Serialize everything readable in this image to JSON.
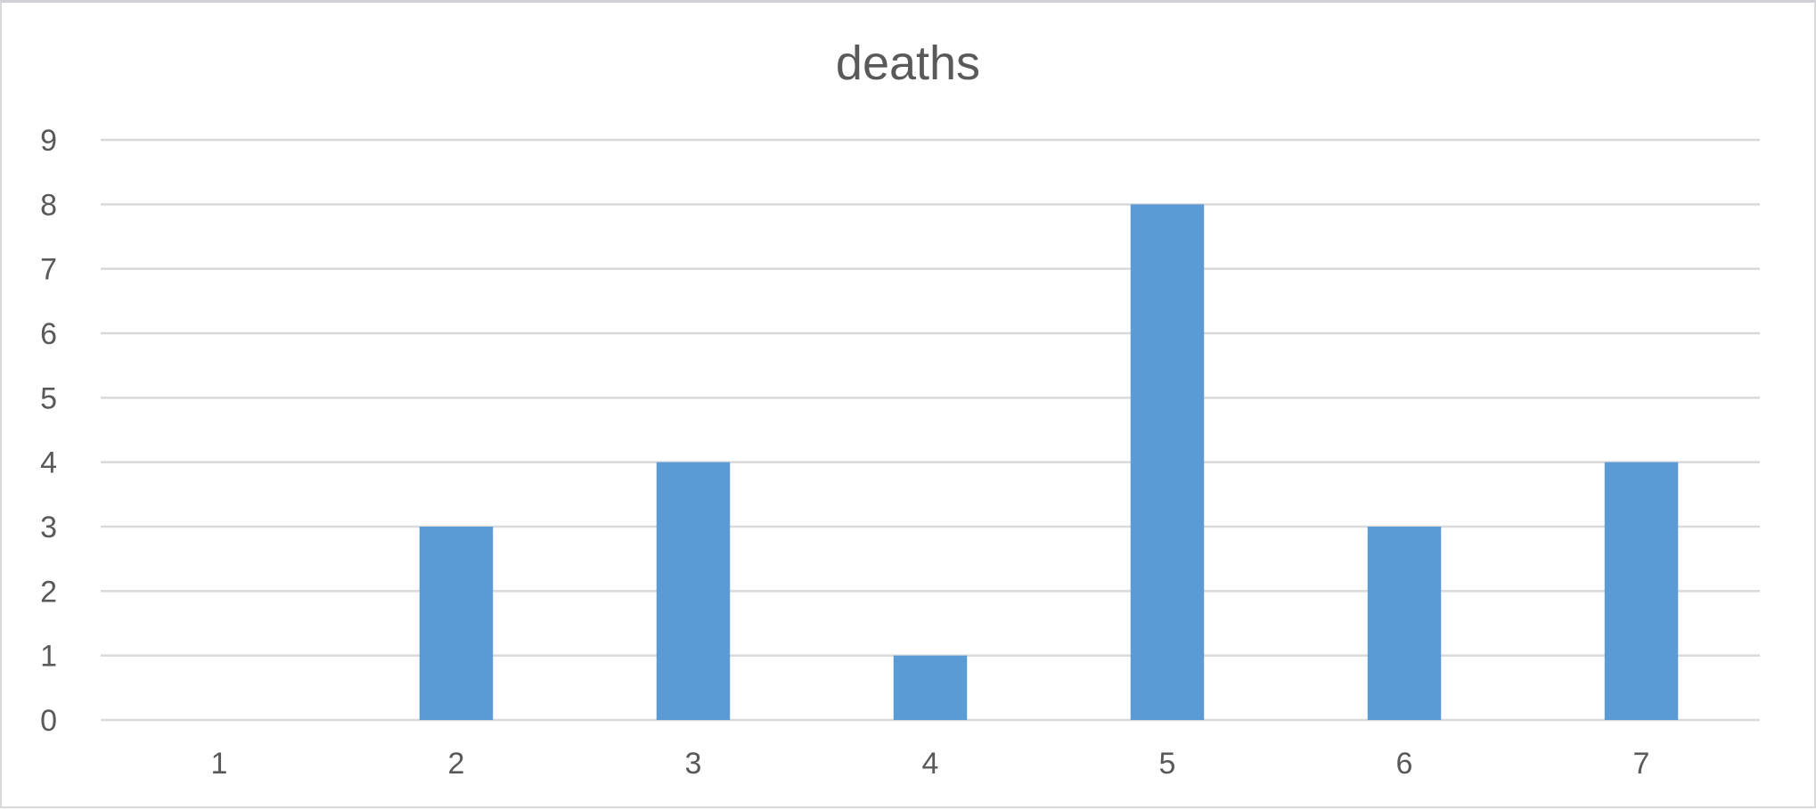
{
  "chart_data": {
    "type": "bar",
    "title": "deaths",
    "xlabel": "",
    "ylabel": "",
    "categories": [
      "1",
      "2",
      "3",
      "4",
      "5",
      "6",
      "7"
    ],
    "values": [
      0,
      3,
      4,
      1,
      8,
      3,
      4
    ],
    "ylim": [
      0,
      9
    ],
    "yticks": [
      "0",
      "1",
      "2",
      "3",
      "4",
      "5",
      "6",
      "7",
      "8",
      "9"
    ],
    "grid": true,
    "legend": "none",
    "bar_color": "#5b9bd5",
    "grid_color": "#d9d9d9",
    "text_color": "#595959"
  }
}
